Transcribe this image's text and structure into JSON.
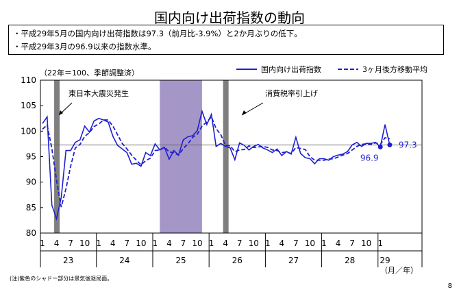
{
  "page": {
    "title": "国内向け出荷指数の動向",
    "bullets": [
      "・平成29年5月の国内向け出荷指数は97.3（前月比-3.9%）と2か月ぶりの低下。",
      "・平成29年3月の96.9以来の指数水準。"
    ],
    "unit_note": "（22年＝100、季節調整済）",
    "footnote": "(注)紫色のシャドー部分は景気後退局面。",
    "page_number": "8",
    "axis_unit": "（月／年）"
  },
  "colors": {
    "series": "#1f1fd0",
    "recession": "#a596c8",
    "event": "#7f7f7f",
    "refline": "#555555"
  },
  "chart_data": {
    "type": "line",
    "title": "国内向け出荷指数の動向",
    "ylabel": "（22年＝100、季節調整済）",
    "xlabel": "（月／年）",
    "ylim": [
      80,
      110
    ],
    "yticks": [
      80,
      85,
      90,
      95,
      100,
      105,
      110
    ],
    "grid": false,
    "legend_position": "top-right",
    "x_start": "H23-01",
    "month_tick_labels": [
      "1",
      "4",
      "7",
      "10"
    ],
    "years": [
      "23",
      "24",
      "25",
      "26",
      "27",
      "28",
      "29"
    ],
    "series": [
      {
        "name": "国内向け出荷指数",
        "style": "solid",
        "values": [
          101.5,
          102.8,
          85.5,
          82.8,
          87.0,
          96.2,
          96.2,
          97.8,
          98.3,
          101.0,
          99.8,
          102.0,
          102.5,
          102.2,
          101.8,
          99.0,
          97.2,
          96.5,
          95.8,
          93.5,
          93.7,
          93.1,
          95.8,
          95.2,
          97.5,
          96.3,
          96.8,
          94.5,
          96.2,
          95.3,
          98.3,
          98.9,
          99.1,
          100.1,
          103.9,
          101.3,
          103.3,
          97.0,
          97.6,
          97.0,
          96.7,
          94.4,
          97.7,
          97.2,
          96.3,
          97.0,
          97.4,
          96.7,
          96.3,
          95.8,
          96.5,
          95.2,
          96.0,
          95.5,
          98.8,
          95.6,
          94.8,
          94.6,
          93.6,
          94.6,
          94.6,
          94.3,
          95.0,
          95.3,
          95.5,
          96.0,
          97.3,
          97.8,
          97.0,
          97.6,
          97.6,
          97.8,
          96.9,
          101.3,
          97.3
        ],
        "end_labels": [
          {
            "month_index": 72,
            "text": "96.9"
          },
          {
            "month_index": 74,
            "text": "97.3"
          }
        ]
      },
      {
        "name": "3ヶ月後方移動平均",
        "style": "dashed",
        "values": [
          100.4,
          101.2,
          96.6,
          90.4,
          85.1,
          88.7,
          93.1,
          96.7,
          97.4,
          99.0,
          99.7,
          100.9,
          101.4,
          102.2,
          102.2,
          101.0,
          99.3,
          97.6,
          96.5,
          95.3,
          94.3,
          93.4,
          94.2,
          94.7,
          96.2,
          96.3,
          96.9,
          95.9,
          95.8,
          95.3,
          96.6,
          97.5,
          98.8,
          99.4,
          101.0,
          101.8,
          102.8,
          100.5,
          99.3,
          97.2,
          97.1,
          96.0,
          96.3,
          96.4,
          97.1,
          96.8,
          96.9,
          97.0,
          96.8,
          96.3,
          96.2,
          95.8,
          95.9,
          95.6,
          96.8,
          96.6,
          96.4,
          95.0,
          94.3,
          94.3,
          94.3,
          94.5,
          94.6,
          94.9,
          95.3,
          95.6,
          96.3,
          97.0,
          97.4,
          97.5,
          97.4,
          97.7,
          97.4,
          98.7,
          98.5
        ]
      }
    ],
    "reference_line": {
      "value": 97.3
    },
    "shaded_periods": [
      {
        "type": "recession",
        "start_index": 25,
        "end_index": 34
      },
      {
        "type": "event",
        "start_index": 3,
        "end_index": 4,
        "label": "東日本大震災発生"
      },
      {
        "type": "event",
        "start_index": 39,
        "end_index": 40,
        "label": "消費税率引上げ"
      }
    ]
  }
}
